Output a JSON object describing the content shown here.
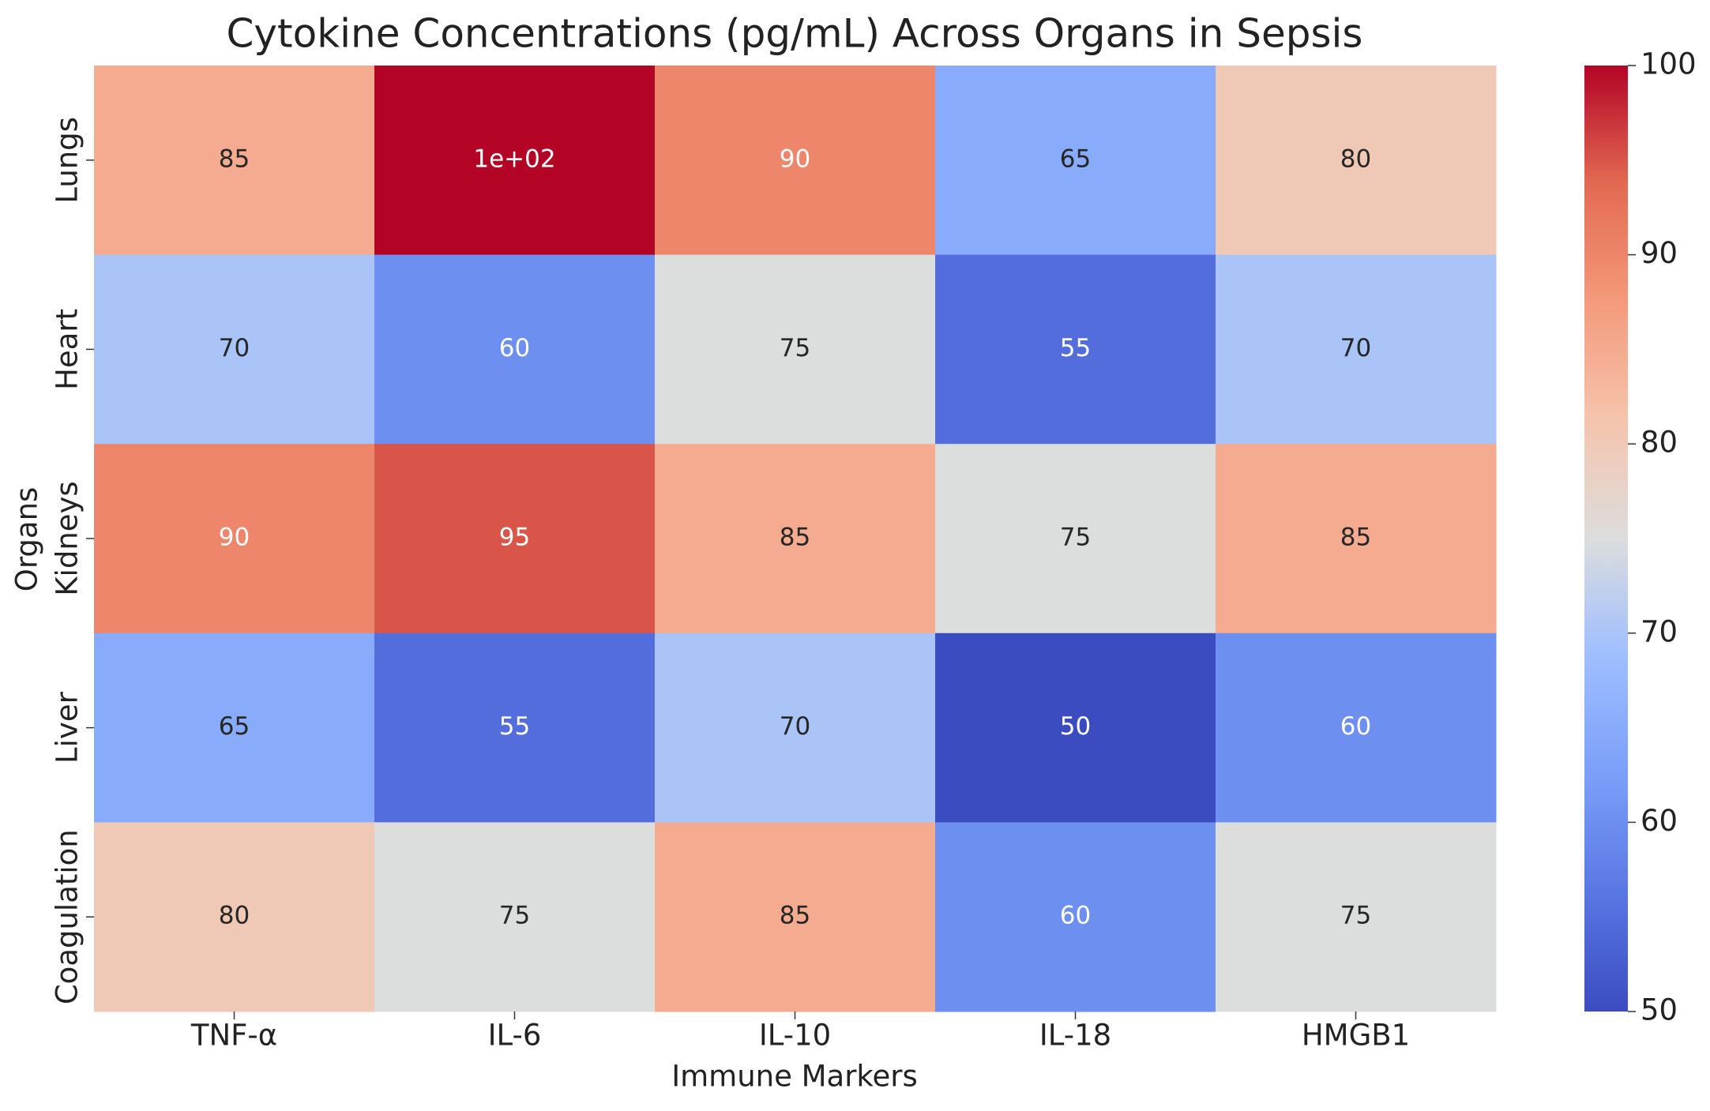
{
  "chart_data": {
    "type": "heatmap",
    "title": "Cytokine Concentrations (pg/mL) Across Organs in Sepsis",
    "x_label": "Immune Markers",
    "y_label": "Organs",
    "columns": [
      "TNF-α",
      "IL-6",
      "IL-10",
      "IL-18",
      "HMGB1"
    ],
    "rows": [
      "Lungs",
      "Heart",
      "Kidneys",
      "Liver",
      "Coagulation"
    ],
    "values": [
      [
        85,
        100,
        90,
        65,
        80
      ],
      [
        70,
        60,
        75,
        55,
        70
      ],
      [
        90,
        95,
        85,
        75,
        85
      ],
      [
        65,
        55,
        70,
        50,
        60
      ],
      [
        80,
        75,
        85,
        60,
        75
      ]
    ],
    "value_labels": [
      [
        "85",
        "1e+02",
        "90",
        "65",
        "80"
      ],
      [
        "70",
        "60",
        "75",
        "55",
        "70"
      ],
      [
        "90",
        "95",
        "85",
        "75",
        "85"
      ],
      [
        "65",
        "55",
        "70",
        "50",
        "60"
      ],
      [
        "80",
        "75",
        "85",
        "60",
        "75"
      ]
    ],
    "colormap": "coolwarm",
    "clim": [
      50,
      100
    ],
    "cticks": [
      50,
      60,
      70,
      80,
      90,
      100
    ]
  }
}
